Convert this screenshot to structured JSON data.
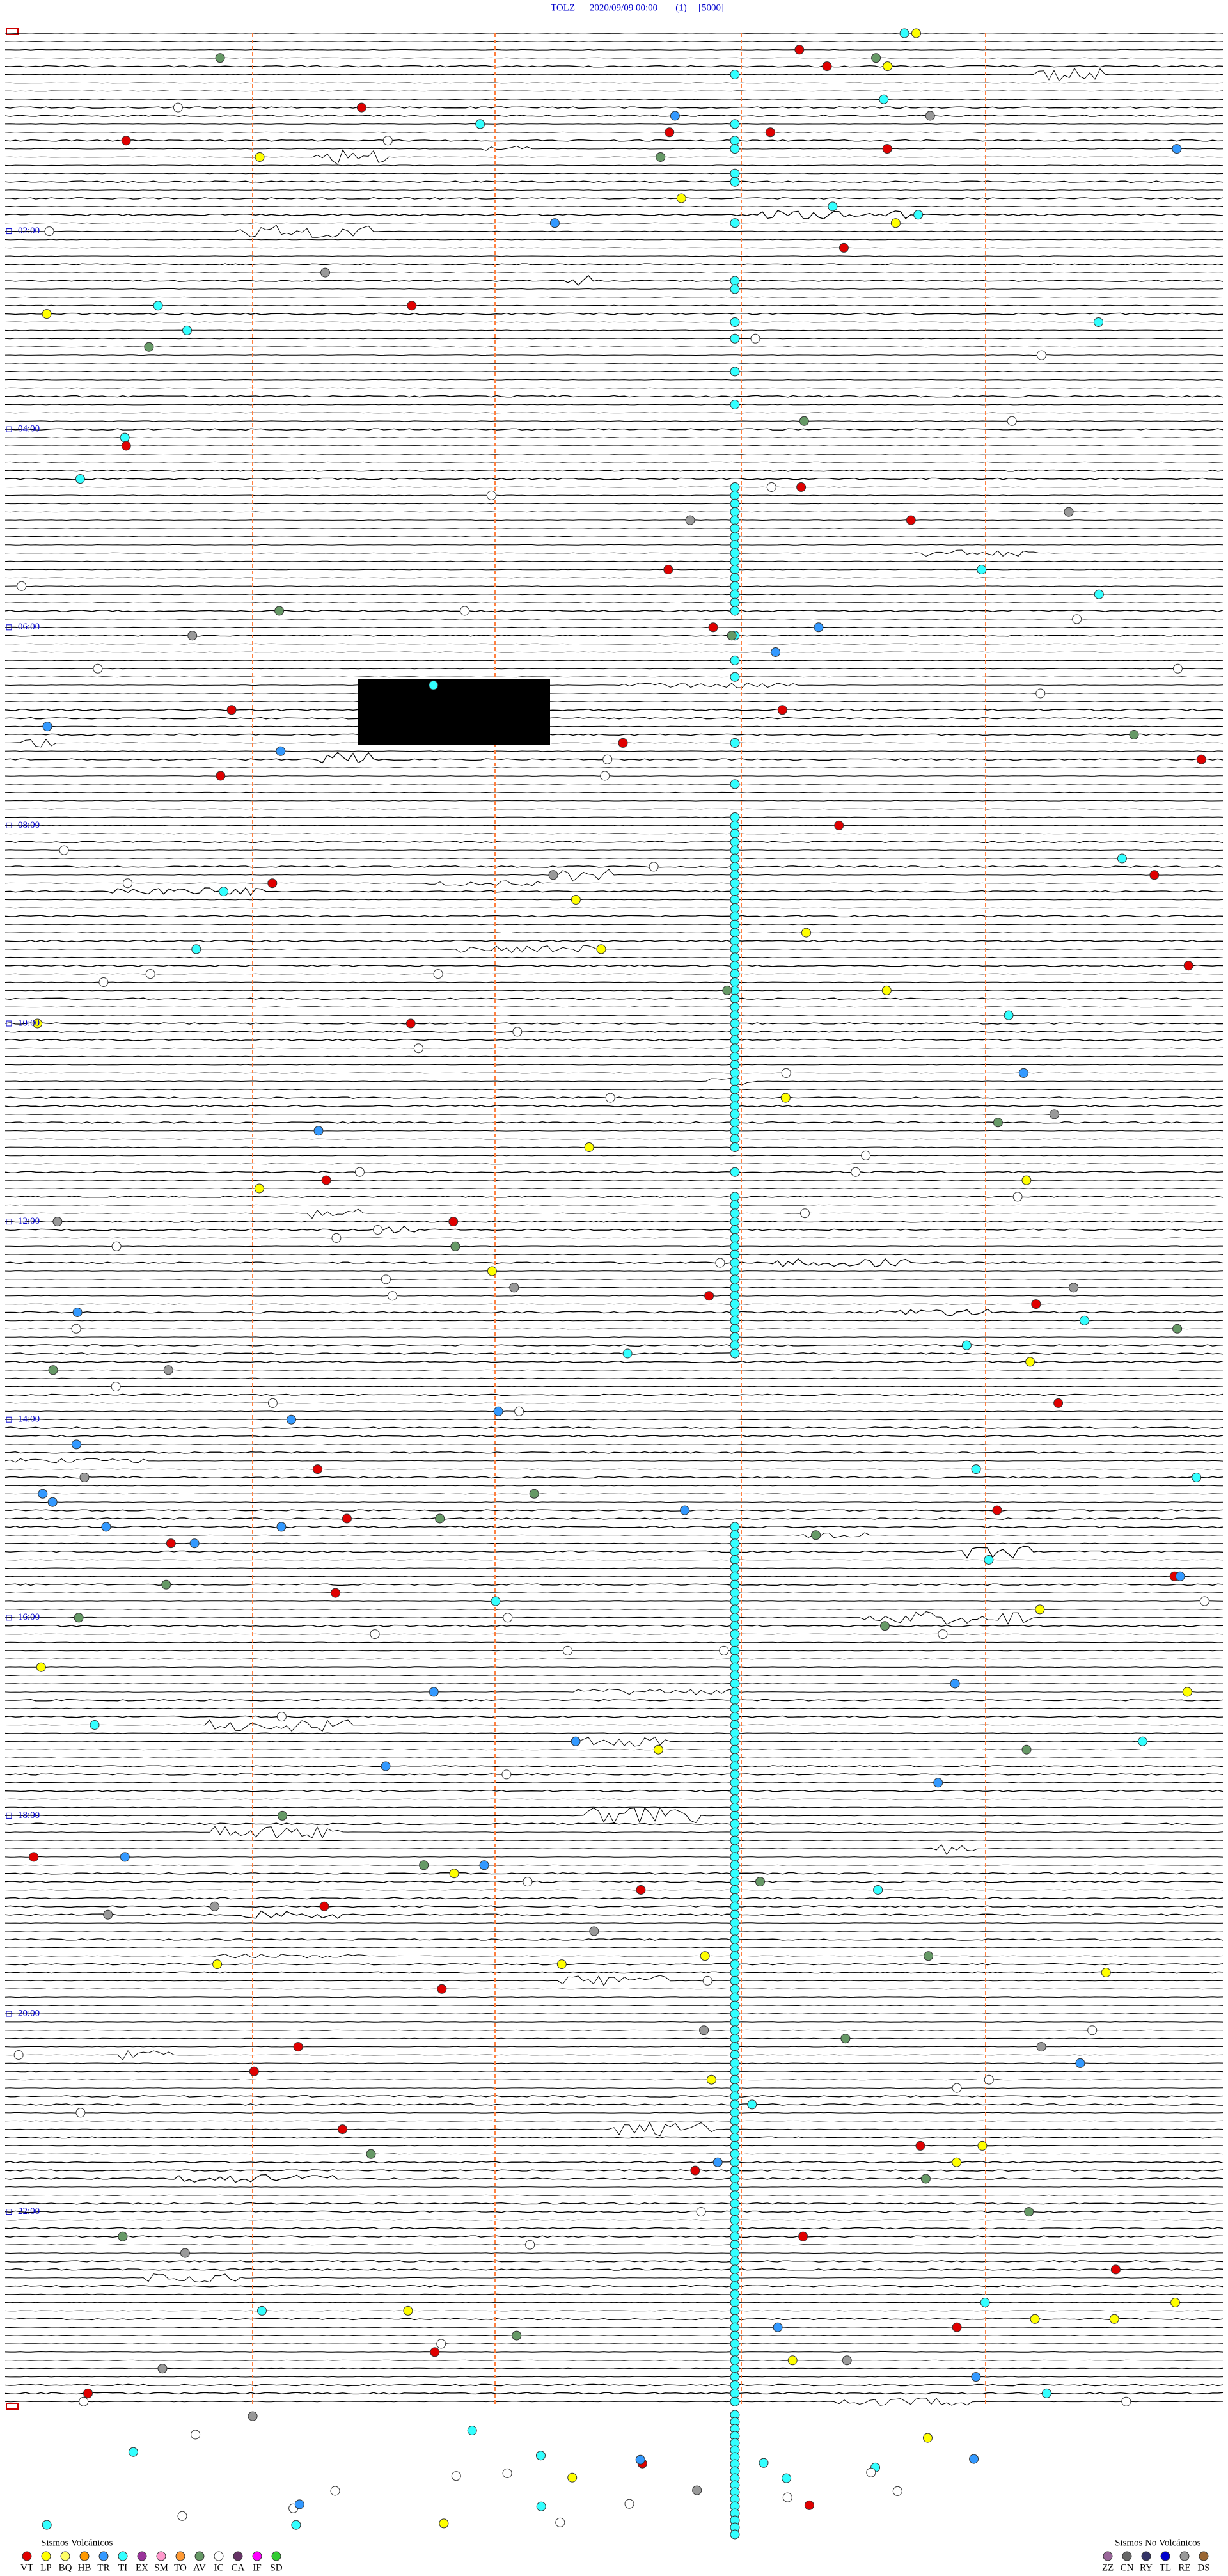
{
  "header": {
    "station": "TOLZ",
    "datetime": "2020/09/09 00:00",
    "channel": "(1)",
    "scale": "[5000]"
  },
  "time_labels": [
    "02:00",
    "04:00",
    "06:00",
    "08:00",
    "10:00",
    "12:00",
    "14:00",
    "16:00",
    "18:00",
    "20:00",
    "22:00"
  ],
  "legend_volcanic": {
    "title": "Sismos Volcánicos",
    "items": [
      {
        "code": "VT",
        "color": "#e00000"
      },
      {
        "code": "LP",
        "color": "#ffff00"
      },
      {
        "code": "BQ",
        "color": "#ffff66"
      },
      {
        "code": "HB",
        "color": "#ff9900"
      },
      {
        "code": "TR",
        "color": "#3399ff"
      },
      {
        "code": "TI",
        "color": "#33ffff"
      },
      {
        "code": "EX",
        "color": "#993399"
      },
      {
        "code": "SM",
        "color": "#ff99cc"
      },
      {
        "code": "TO",
        "color": "#ff9933"
      },
      {
        "code": "AV",
        "color": "#669966"
      },
      {
        "code": "IC",
        "color": "#ffffff"
      },
      {
        "code": "CA",
        "color": "#663366"
      },
      {
        "code": "IF",
        "color": "#ff00ff"
      },
      {
        "code": "SD",
        "color": "#33cc33"
      }
    ]
  },
  "legend_non_volcanic": {
    "title": "Sismos No Volcánicos",
    "items": [
      {
        "code": "ZZ",
        "color": "#996699"
      },
      {
        "code": "CN",
        "color": "#666666"
      },
      {
        "code": "RY",
        "color": "#333366"
      },
      {
        "code": "TL",
        "color": "#0000cc"
      },
      {
        "code": "RE",
        "color": "#999999"
      },
      {
        "code": "DS",
        "color": "#996633"
      }
    ]
  }
}
